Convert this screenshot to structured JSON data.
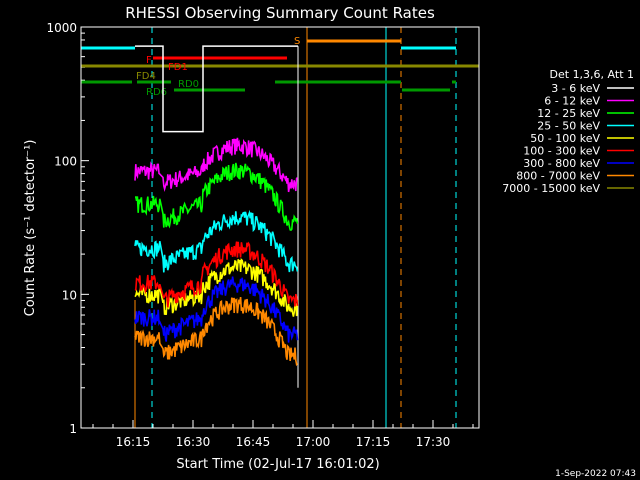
{
  "chart_data": {
    "type": "line",
    "title": "RHESSI Observing Summary Count Rates",
    "xlabel": "Start Time (02-Jul-17 16:01:02)",
    "ylabel": "Count Rate (s⁻¹ detector⁻¹)",
    "yscale": "log",
    "ylim": [
      1,
      1000
    ],
    "xlim_minutes": [
      0,
      39.5
    ],
    "x_ticks": [
      "16:15",
      "16:30",
      "16:45",
      "17:00",
      "17:15",
      "17:30"
    ],
    "y_ticks": [
      "1",
      "10",
      "100",
      "1000"
    ],
    "legend_title": "Det 1,3,6, Att 1",
    "legend_position": "right",
    "timestamp": "1-Sep-2022 07:43",
    "series": [
      {
        "name": "3 - 6 keV",
        "color": "#ffffff",
        "values_t": [
          13.0,
          15.0,
          15.5,
          21.5,
          22.0,
          30.0,
          30.5,
          54.0
        ],
        "values": [
          720,
          720,
          165,
          165,
          720,
          720,
          720,
          720
        ]
      },
      {
        "name": "6 - 12 keV",
        "color": "#ff00ff",
        "peak": 130,
        "flat": 68
      },
      {
        "name": "12 - 25 keV",
        "color": "#00ff00",
        "peak": 85,
        "flat": 35
      },
      {
        "name": "25 - 50 keV",
        "color": "#00ffff",
        "peak": 38,
        "flat": 17
      },
      {
        "name": "50 - 100 keV",
        "color": "#ffff00",
        "peak": 16,
        "flat": 8
      },
      {
        "name": "100 - 300 keV",
        "color": "#ff0000",
        "peak": 22,
        "flat": 9
      },
      {
        "name": "300 - 800 keV",
        "color": "#0000ff",
        "peak": 12,
        "flat": 5
      },
      {
        "name": "800 - 7000 keV",
        "color": "#ff8800",
        "peak": 8.5,
        "flat": 3.5
      },
      {
        "name": "7000 - 15000 keV",
        "color": "#888800",
        "peak": 0,
        "flat": 0
      }
    ],
    "flag_labels": [
      {
        "text": "F",
        "color": "#ff0000"
      },
      {
        "text": "FD1",
        "color": "#ff0000"
      },
      {
        "text": "FD4",
        "color": "#888800"
      },
      {
        "text": "RD0",
        "color": "#009900"
      },
      {
        "text": "RD6",
        "color": "#009900"
      },
      {
        "text": "S",
        "color": "#ff8800"
      }
    ]
  }
}
